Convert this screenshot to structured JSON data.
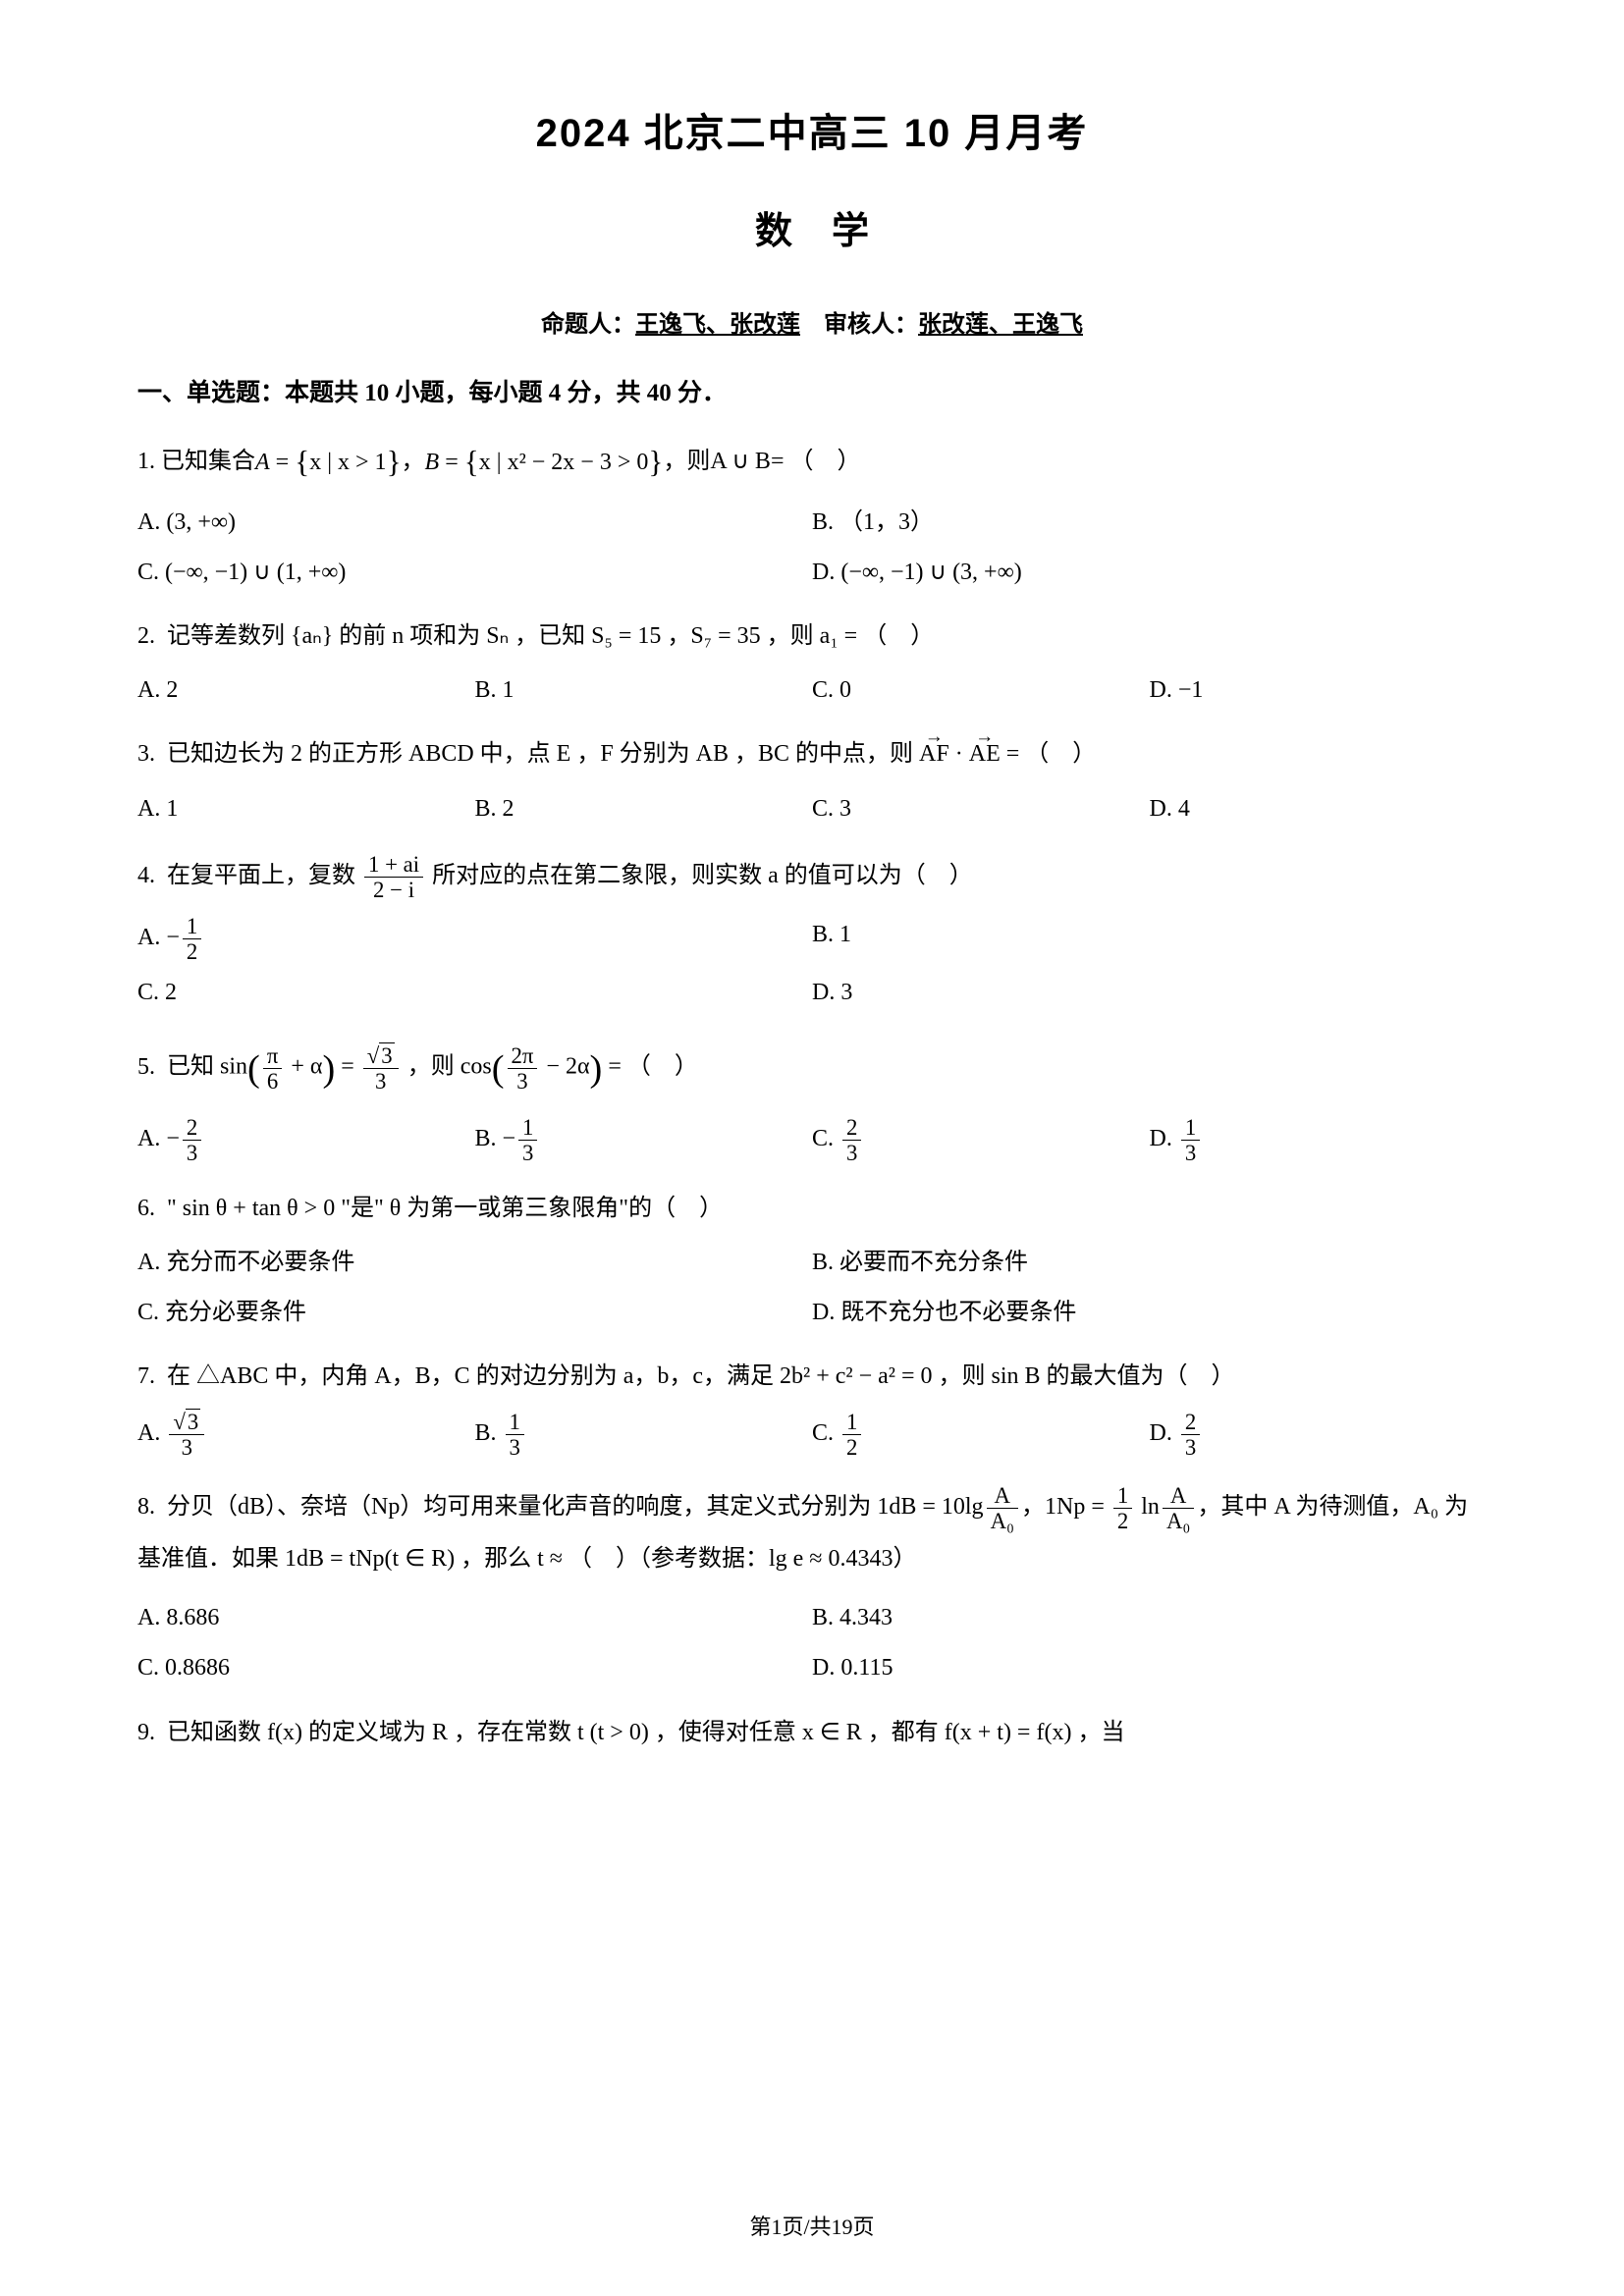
{
  "header": {
    "title_main": "2024 北京二中高三 10 月月考",
    "title_sub": "数学",
    "author_prefix": "命题人：",
    "authors": "王逸飞、张改莲",
    "reviewer_prefix": "审核人：",
    "reviewers": "张改莲、王逸飞"
  },
  "section1": {
    "heading": "一、单选题：本题共 10 小题，每小题 4 分，共 40 分．"
  },
  "q1": {
    "num": "1.",
    "pre": "已知集合 ",
    "setA_var": "A",
    "setA_cond": "x > 1",
    "setB_var": "B",
    "setB_cond": "x² − 2x − 3 > 0",
    "mid": "，则 ",
    "union": "A ∪ B",
    "post": " = （　）",
    "optA": "A. (3, +∞)",
    "optB": "B. （1，3）",
    "optC": "C. (−∞, −1) ∪ (1, +∞)",
    "optD": "D. (−∞, −1) ∪ (3, +∞)"
  },
  "q2": {
    "num": "2.",
    "text_pre": "记等差数列 {aₙ} 的前 n 项和为 Sₙ ，已知 S₅ = 15 ，S₇ = 35 ，则 a₁ = （　）",
    "optA": "A. 2",
    "optB": "B. 1",
    "optC": "C. 0",
    "optD": "D. −1"
  },
  "q3": {
    "num": "3.",
    "text": "已知边长为 2 的正方形 ABCD 中，点 E ，F 分别为 AB ，BC 的中点，则 ",
    "vec1": "AF",
    "vec2": "AE",
    "post": " = （　）",
    "optA": "A. 1",
    "optB": "B. 2",
    "optC": "C. 3",
    "optD": "D. 4"
  },
  "q4": {
    "num": "4.",
    "pre": "在复平面上，复数 ",
    "frac_num": "1 + ai",
    "frac_den": "2 − i",
    "post": " 所对应的点在第二象限，则实数 a 的值可以为（　）",
    "optA_pre": "A. −",
    "optA_num": "1",
    "optA_den": "2",
    "optB": "B. 1",
    "optC": "C. 2",
    "optD": "D. 3"
  },
  "q5": {
    "num": "5.",
    "pre": "已知 sin",
    "arg1_num": "π",
    "arg1_den": "6",
    "arg1_post": " + α",
    "eq": " = ",
    "rhs_rad": "3",
    "rhs_den": "3",
    "mid": "，则 cos",
    "arg2_num": "2π",
    "arg2_den": "3",
    "arg2_post": " − 2α",
    "post": " = （　）",
    "optA_pre": "A. −",
    "optA_num": "2",
    "optA_den": "3",
    "optB_pre": "B. −",
    "optB_num": "1",
    "optB_den": "3",
    "optC_pre": "C. ",
    "optC_num": "2",
    "optC_den": "3",
    "optD_pre": "D. ",
    "optD_num": "1",
    "optD_den": "3"
  },
  "q6": {
    "num": "6.",
    "text": "\" sin θ + tan θ > 0 \"是\" θ 为第一或第三象限角\"的（　）",
    "optA": "A. 充分而不必要条件",
    "optB": "B. 必要而不充分条件",
    "optC": "C. 充分必要条件",
    "optD": "D. 既不充分也不必要条件"
  },
  "q7": {
    "num": "7.",
    "text": "在 △ABC 中，内角 A，B，C 的对边分别为 a，b，c，满足 2b² + c² − a² = 0 ，则 sin B 的最大值为（　）",
    "optA_pre": "A. ",
    "optA_rad": "3",
    "optA_den": "3",
    "optB_pre": "B. ",
    "optB_num": "1",
    "optB_den": "3",
    "optC_pre": "C. ",
    "optC_num": "1",
    "optC_den": "2",
    "optD_pre": "D. ",
    "optD_num": "2",
    "optD_den": "3"
  },
  "q8": {
    "num": "8.",
    "pre": "分贝（dB）、奈培（Np）均可用来量化声音的响度，其定义式分别为 1dB = 10lg",
    "f1_num": "A",
    "f1_den": "A₀",
    "mid1": "，1Np = ",
    "f2a_num": "1",
    "f2a_den": "2",
    "mid1b": " ln",
    "f2b_num": "A",
    "f2b_den": "A₀",
    "mid2": "，其中 A 为待测值，A₀ 为基准值．如果 1dB = tNp(t ∈ R) ，那么 t ≈ （　）（参考数据：lg e ≈ 0.4343）",
    "optA": "A. 8.686",
    "optB": "B. 4.343",
    "optC": "C. 0.8686",
    "optD": "D. 0.115"
  },
  "q9": {
    "num": "9.",
    "text": "已知函数 f(x) 的定义域为 R ，存在常数 t (t > 0) ，使得对任意 x ∈ R ，都有 f(x + t) = f(x) ，当"
  },
  "footer": {
    "text": "第1页/共19页"
  }
}
